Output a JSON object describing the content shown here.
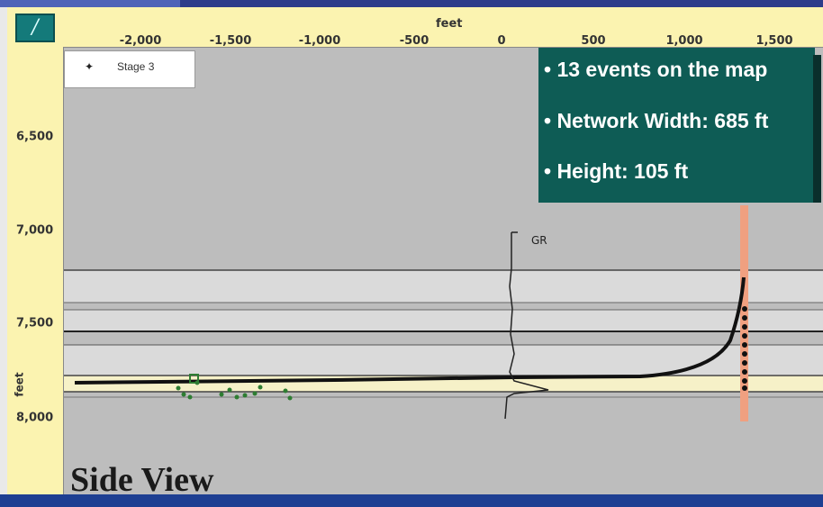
{
  "app": {
    "tool_button_label": "/"
  },
  "ruler": {
    "x_unit": "feet",
    "y_unit": "feet",
    "x_ticks": [
      "-2,000",
      "-1,500",
      "-1,000",
      "-500",
      "0",
      "500",
      "1,000",
      "1,500"
    ],
    "y_ticks": [
      "6,500",
      "7,000",
      "7,500",
      "8,000"
    ]
  },
  "legend": {
    "marker": "✦",
    "label": "Stage 3"
  },
  "info": {
    "line1": "• 13 events on the map",
    "line2": "• Network Width: 685 ft",
    "line3": "• Height: 105 ft",
    "background_color": "#0e5c55"
  },
  "plot": {
    "gr_label": "GR",
    "caption": "Side View",
    "background_color": "#bdbdbd",
    "event_color": "#2e7d32",
    "stage_marker_color": "#f0a080"
  }
}
